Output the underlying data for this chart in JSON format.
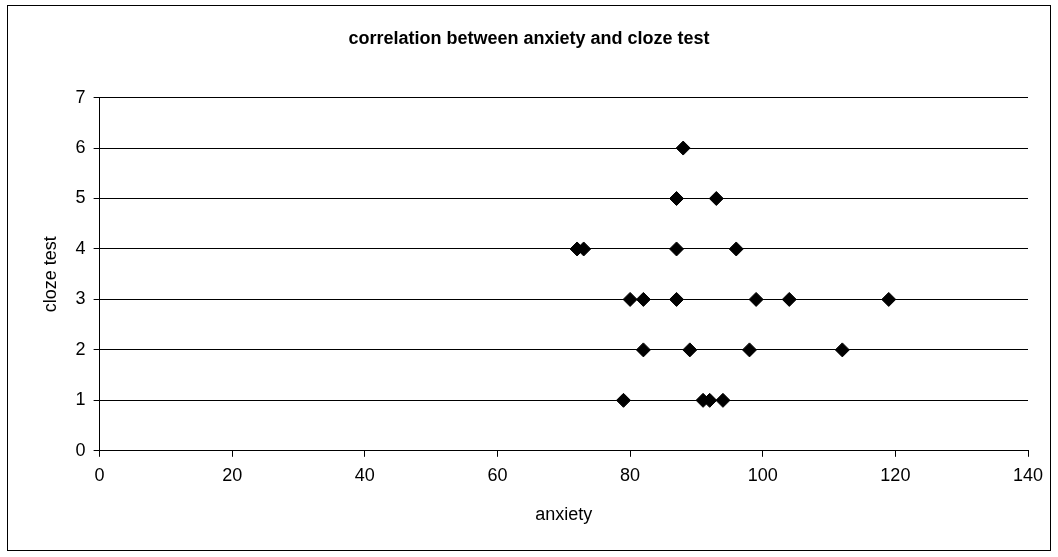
{
  "chart_data": {
    "type": "scatter",
    "title": "correlation between anxiety and cloze test",
    "xlabel": "anxiety",
    "ylabel": "cloze test",
    "x": [
      88,
      87,
      93,
      72,
      73,
      87,
      96,
      80,
      82,
      87,
      99,
      104,
      119,
      82,
      89,
      98,
      112,
      79,
      91,
      92,
      94
    ],
    "values": [
      6,
      5,
      5,
      4,
      4,
      4,
      4,
      3,
      3,
      3,
      3,
      3,
      3,
      2,
      2,
      2,
      2,
      1,
      1,
      1,
      1
    ],
    "color": "#000000",
    "marker": "diamond",
    "xlim": [
      0,
      140
    ],
    "xticks": [
      0,
      20,
      40,
      60,
      80,
      100,
      120,
      140
    ],
    "ylim": [
      0,
      7
    ],
    "yticks": [
      0,
      1,
      2,
      3,
      4,
      5,
      6,
      7
    ],
    "grid": "y",
    "legend": false
  }
}
